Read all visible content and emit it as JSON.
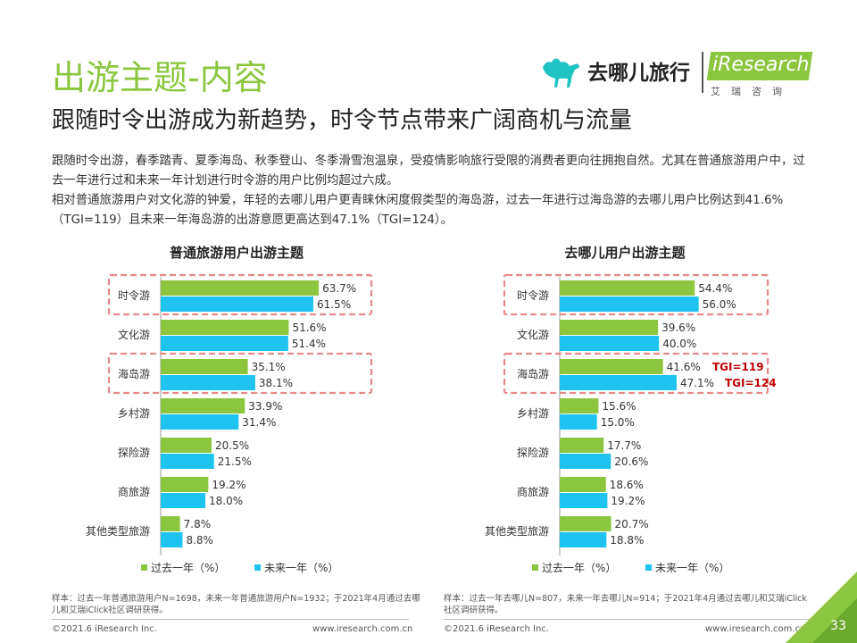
{
  "header": {
    "title": "出游主题-内容",
    "subtitle": "跟随时令出游成为新趋势，时令节点带来广阔商机与流量",
    "logo_qunar_text": "去哪儿旅行",
    "logo_iresearch_text": "iResearch",
    "logo_iresearch_sub": "艾瑞咨询"
  },
  "description": {
    "p1": "跟随时令出游，春季踏青、夏季海岛、秋季登山、冬季滑雪泡温泉，受疫情影响旅行受限的消费者更向往拥抱自然。尤其在普通旅游用户中，过去一年进行过和未来一年计划进行时令游的用户比例均超过六成。",
    "p2": "相对普通旅游用户对文化游的钟爱，年轻的去哪儿用户更青睐休闲度假类型的海岛游，过去一年进行过海岛游的去哪儿用户比例达到41.6%（TGI=119）且未来一年海岛游的出游意愿更高达到47.1%（TGI=124）。"
  },
  "chart_data": [
    {
      "type": "bar",
      "orientation": "horizontal",
      "title": "普通旅游用户出游主题",
      "categories": [
        "时令游",
        "文化游",
        "海岛游",
        "乡村游",
        "探险游",
        "商旅游",
        "其他类型旅游"
      ],
      "series": [
        {
          "name": "过去一年（%）",
          "color": "#8cc63f",
          "values": [
            63.7,
            51.6,
            35.1,
            33.9,
            20.5,
            19.2,
            7.8
          ]
        },
        {
          "name": "未来一年（%）",
          "color": "#1fc3ef",
          "values": [
            61.5,
            51.4,
            38.1,
            31.4,
            21.5,
            18.0,
            8.8
          ]
        }
      ],
      "highlighted": [
        "时令游",
        "海岛游"
      ],
      "legend_position": "bottom",
      "xlim": [
        0,
        100
      ]
    },
    {
      "type": "bar",
      "orientation": "horizontal",
      "title": "去哪儿用户出游主题",
      "categories": [
        "时令游",
        "文化游",
        "海岛游",
        "乡村游",
        "探险游",
        "商旅游",
        "其他类型旅游"
      ],
      "series": [
        {
          "name": "过去一年（%）",
          "color": "#8cc63f",
          "values": [
            54.4,
            39.6,
            41.6,
            15.6,
            17.7,
            18.6,
            20.7
          ]
        },
        {
          "name": "未来一年（%）",
          "color": "#1fc3ef",
          "values": [
            56.0,
            40.0,
            47.1,
            15.0,
            20.6,
            19.2,
            18.8
          ]
        }
      ],
      "highlighted": [
        "时令游",
        "海岛游"
      ],
      "annotations": [
        "TGI=119",
        "TGI=124"
      ],
      "legend_position": "bottom",
      "xlim": [
        0,
        100
      ]
    }
  ],
  "footer": {
    "note_left": "样本：过去一年普通旅游用户N=1698，未来一年普通旅游用户N=1932；于2021年4月通过去哪儿和艾瑞iClick社区调研获得。",
    "note_right": "样本：过去一年去哪儿N=807，未来一年去哪儿N=914；于2021年4月通过去哪儿和艾瑞iClick社区调研获得。",
    "copyright_left": "©2021.6 iResearch Inc.",
    "url_left": "www.iresearch.com.cn",
    "copyright_right": "©2021.6 iResearch Inc.",
    "url_right": "www.iresearch.com.cn",
    "page_number": "33"
  },
  "colors": {
    "accent": "#8cc63f",
    "future": "#1fc3ef",
    "highlight": "#e6898b",
    "tgi": "#c00000"
  }
}
